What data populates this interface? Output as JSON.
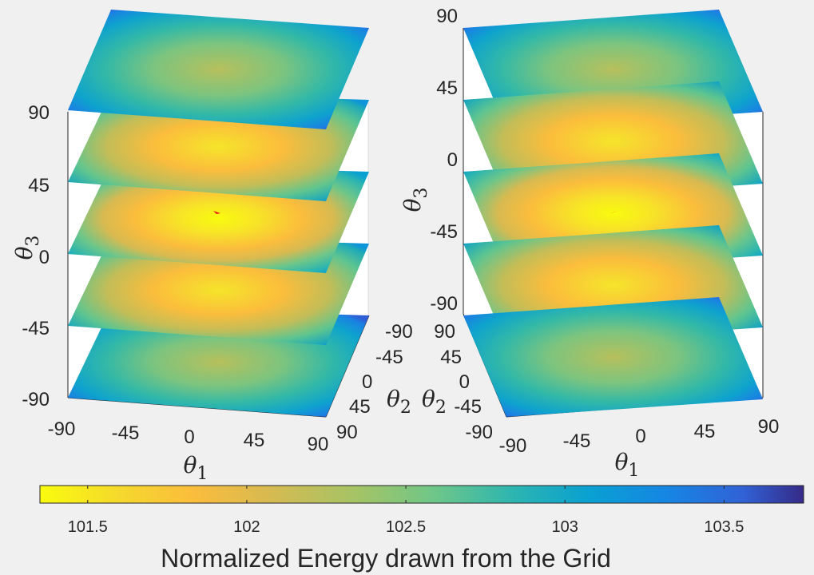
{
  "chart_data": [
    {
      "type": "heatmap",
      "view": "left",
      "title": "",
      "x_axis": {
        "label": "θ",
        "label_subscript": "1",
        "ticks": [
          "-90",
          "-45",
          "0",
          "45",
          "90"
        ],
        "range": [
          -90,
          90
        ]
      },
      "y_axis": {
        "label": "θ",
        "label_subscript": "2",
        "ticks": [
          "-90",
          "-45",
          "0",
          "45",
          "90"
        ],
        "range": [
          -90,
          90
        ]
      },
      "z_axis": {
        "label": "θ",
        "label_subscript": "3",
        "ticks": [
          "-90",
          "-45",
          "0",
          "45",
          "90"
        ],
        "range": [
          -90,
          90
        ]
      },
      "slices_at_theta3": [
        -90,
        -45,
        0,
        45,
        90
      ],
      "optimum_marker": {
        "theta1": 0,
        "theta2": 0,
        "theta3": 0,
        "color": "#e8141c"
      }
    },
    {
      "type": "heatmap",
      "view": "right",
      "title": "",
      "x_axis": {
        "label": "θ",
        "label_subscript": "1",
        "ticks": [
          "-90",
          "-45",
          "0",
          "45",
          "90"
        ],
        "range": [
          -90,
          90
        ]
      },
      "y_axis": {
        "label": "θ",
        "label_subscript": "2",
        "ticks": [
          "90",
          "45",
          "0",
          "-45",
          "-90"
        ],
        "range": [
          -90,
          90
        ]
      },
      "z_axis": {
        "label": "θ",
        "label_subscript": "3",
        "ticks": [
          "90",
          "45",
          "0",
          "-45",
          "-90"
        ],
        "range": [
          -90,
          90
        ]
      },
      "slices_at_theta3": [
        -90,
        -45,
        0,
        45,
        90
      ],
      "optimum_marker": {
        "theta1": 0,
        "theta2": 0,
        "theta3": 0,
        "color": "#e8141c"
      }
    }
  ],
  "colorbar": {
    "label": "Normalized Energy drawn from the Grid",
    "min": 101.35,
    "max": 103.75,
    "ticks": [
      "101.5",
      "102",
      "102.5",
      "103",
      "103.5"
    ],
    "tick_values": [
      101.5,
      102,
      102.5,
      103,
      103.5
    ],
    "colormap": "parula (reversed)",
    "colors": [
      "#f9fb0e",
      "#fbbd3c",
      "#d7ba51",
      "#a2c467",
      "#6cc68a",
      "#2cb5b0",
      "#09a0d2",
      "#1686e3",
      "#3162d6",
      "#352a87"
    ]
  }
}
